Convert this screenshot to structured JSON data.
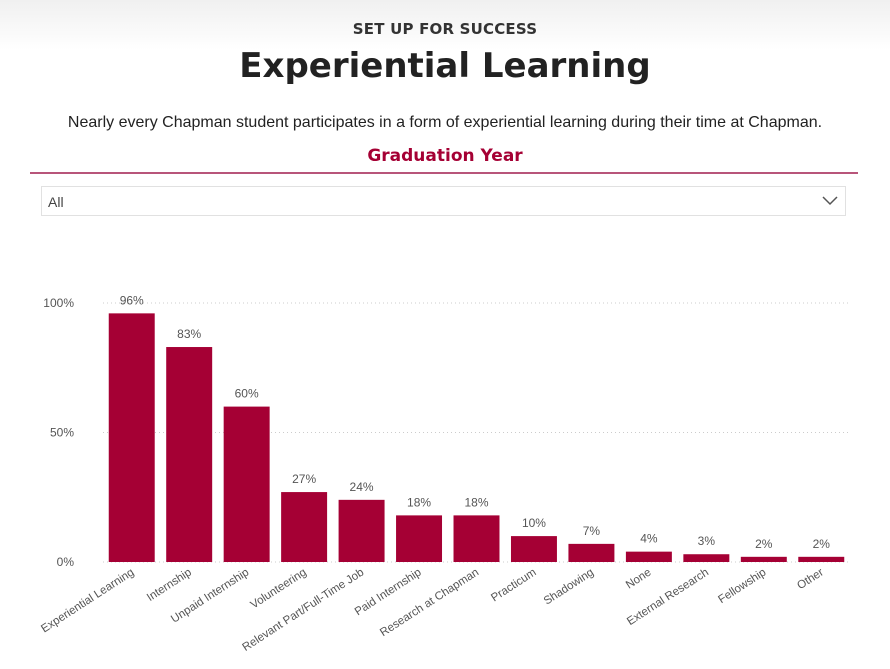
{
  "header": {
    "kicker": "SET UP FOR SUCCESS",
    "title": "Experiential Learning",
    "subtitle": "Nearly every Chapman student participates in a form of experiential learning during their time at Chapman."
  },
  "filter": {
    "label": "Graduation Year",
    "selected": "All",
    "icon": "chevron-down-icon"
  },
  "colors": {
    "bar": "#a50034",
    "accent": "#a50034",
    "rule": "#b8557a",
    "text": "#222222",
    "axis_text": "#555555",
    "grid": "#cccccc"
  },
  "chart_data": {
    "type": "bar",
    "categories": [
      "Experiential Learning",
      "Internship",
      "Unpaid Internship",
      "Volunteering",
      "Relevant Part/Full-Time Job",
      "Paid Internship",
      "Research at Chapman",
      "Practicum",
      "Shadowing",
      "None",
      "External Research",
      "Fellowship",
      "Other"
    ],
    "values": [
      96,
      83,
      60,
      27,
      24,
      18,
      18,
      10,
      7,
      4,
      3,
      2,
      2
    ],
    "data_labels": [
      "96%",
      "83%",
      "60%",
      "27%",
      "24%",
      "18%",
      "18%",
      "10%",
      "7%",
      "4%",
      "3%",
      "2%",
      "2%"
    ],
    "yticks": [
      0,
      50,
      100
    ],
    "ytick_labels": [
      "0%",
      "50%",
      "100%"
    ],
    "ylim": [
      0,
      100
    ],
    "grid": true,
    "legend": "none",
    "title": "",
    "xlabel": "",
    "ylabel": ""
  }
}
